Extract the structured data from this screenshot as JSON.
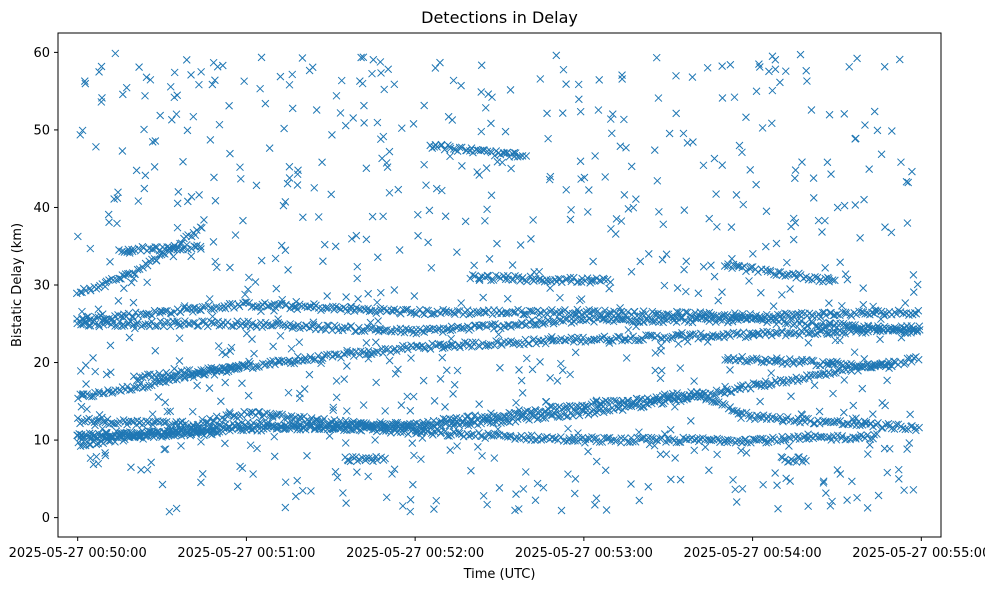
{
  "chart_data": {
    "type": "scatter",
    "title": "Detections in Delay",
    "xlabel": "Time (UTC)",
    "ylabel": "Bistatic Delay (km)",
    "x_start": "2025-05-27 00:50:00",
    "x_end": "2025-05-27 00:55:00",
    "xlim": [
      "2025-05-27 00:49:53",
      "2025-05-27 00:55:07"
    ],
    "ylim": [
      -2.5,
      62.5
    ],
    "x_ticks": [
      "2025-05-27 00:50:00",
      "2025-05-27 00:51:00",
      "2025-05-27 00:52:00",
      "2025-05-27 00:53:00",
      "2025-05-27 00:54:00",
      "2025-05-27 00:55:00"
    ],
    "y_ticks": [
      "0",
      "10",
      "20",
      "30",
      "40",
      "50",
      "60"
    ],
    "marker": "x",
    "color": "#1f77b4",
    "grid": false,
    "tracks": [
      {
        "t": [
          "2025-05-27 00:50:00",
          "2025-05-27 00:51:00",
          "2025-05-27 00:52:00",
          "2025-05-27 00:53:00",
          "2025-05-27 00:53:50",
          "2025-05-27 00:54:30",
          "2025-05-27 00:55:00"
        ],
        "delay": [
          15.5,
          19.5,
          22.0,
          23.0,
          23.5,
          24.0,
          24.5
        ]
      },
      {
        "t": [
          "2025-05-27 00:50:00",
          "2025-05-27 00:51:00",
          "2025-05-27 00:52:00",
          "2025-05-27 00:53:00",
          "2025-05-27 00:54:00",
          "2025-05-27 00:55:00"
        ],
        "delay": [
          25.5,
          27.5,
          26.5,
          26.5,
          26.0,
          26.5
        ]
      },
      {
        "t": [
          "2025-05-27 00:50:00",
          "2025-05-27 00:51:00",
          "2025-05-27 00:52:00",
          "2025-05-27 00:53:00",
          "2025-05-27 00:54:00",
          "2025-05-27 00:55:00"
        ],
        "delay": [
          25.0,
          25.0,
          24.0,
          25.5,
          25.5,
          24.0
        ]
      },
      {
        "t": [
          "2025-05-27 00:50:00",
          "2025-05-27 00:51:00",
          "2025-05-27 00:51:40",
          "2025-05-27 00:52:00",
          "2025-05-27 00:53:00",
          "2025-05-27 00:54:00",
          "2025-05-27 00:54:45"
        ],
        "delay": [
          9.5,
          12.0,
          11.5,
          11.0,
          10.0,
          10.0,
          10.5
        ]
      },
      {
        "t": [
          "2025-05-27 00:50:00",
          "2025-05-27 00:50:40",
          "2025-05-27 00:51:00",
          "2025-05-27 00:51:40",
          "2025-05-27 00:52:00",
          "2025-05-27 00:53:00",
          "2025-05-27 00:53:30",
          "2025-05-27 00:54:00",
          "2025-05-27 00:55:00"
        ],
        "delay": [
          12.5,
          12.0,
          13.5,
          12.0,
          11.5,
          13.5,
          15.0,
          17.0,
          20.5
        ]
      },
      {
        "t": [
          "2025-05-27 00:50:00",
          "2025-05-27 00:51:00",
          "2025-05-27 00:52:00",
          "2025-05-27 00:53:00",
          "2025-05-27 00:53:40",
          "2025-05-27 00:54:00",
          "2025-05-27 00:55:00"
        ],
        "delay": [
          10.5,
          11.5,
          12.0,
          14.5,
          16.0,
          13.0,
          11.5
        ]
      },
      {
        "t": [
          "2025-05-27 00:50:00",
          "2025-05-27 00:50:20",
          "2025-05-27 00:50:45"
        ],
        "delay": [
          29.0,
          31.5,
          37.5
        ]
      },
      {
        "t": [
          "2025-05-27 00:50:15",
          "2025-05-27 00:50:45"
        ],
        "delay": [
          34.5,
          35.0
        ]
      },
      {
        "t": [
          "2025-05-27 00:52:05",
          "2025-05-27 00:52:40"
        ],
        "delay": [
          48.0,
          46.5
        ]
      },
      {
        "t": [
          "2025-05-27 00:52:20",
          "2025-05-27 00:53:10"
        ],
        "delay": [
          31.0,
          30.5
        ]
      },
      {
        "t": [
          "2025-05-27 00:53:50",
          "2025-05-27 00:54:30"
        ],
        "delay": [
          32.5,
          30.5
        ]
      },
      {
        "t": [
          "2025-05-27 00:53:50",
          "2025-05-27 00:54:50"
        ],
        "delay": [
          20.5,
          19.5
        ]
      },
      {
        "t": [
          "2025-05-27 00:51:35",
          "2025-05-27 00:51:50"
        ],
        "delay": [
          7.5,
          7.5
        ]
      },
      {
        "t": [
          "2025-05-27 00:54:10",
          "2025-05-27 00:54:20"
        ],
        "delay": [
          7.5,
          7.5
        ]
      },
      {
        "t": [
          "2025-05-27 00:50:20",
          "2025-05-27 00:51:00"
        ],
        "delay": [
          18.0,
          19.5
        ]
      },
      {
        "t": [
          "2025-05-27 00:50:00",
          "2025-05-27 00:50:50"
        ],
        "delay": [
          10.5,
          11.0
        ]
      }
    ],
    "noise_count": 780
  }
}
